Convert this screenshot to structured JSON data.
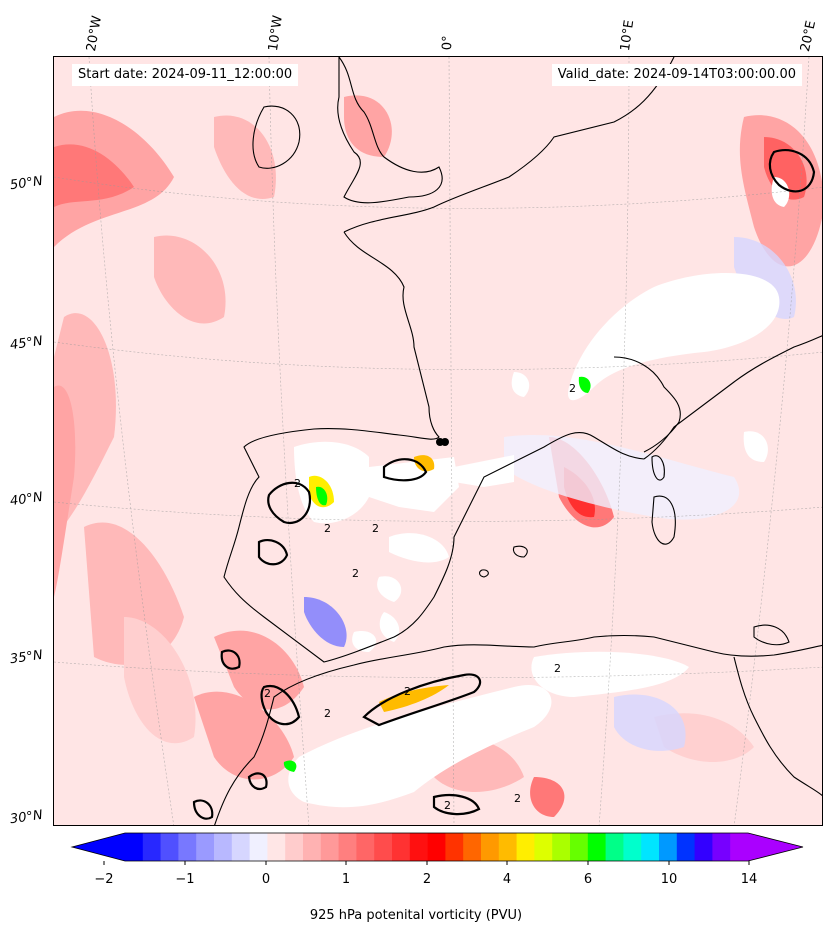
{
  "map": {
    "start_date": "Start date: 2024-09-11_12:00:00",
    "valid_date": "Valid_date: 2024-09-14T03:00:00.00",
    "lon_labels": [
      "20°W",
      "10°W",
      "0°",
      "10°E",
      "20°E"
    ],
    "lat_labels": [
      "50°N",
      "45°N",
      "40°N",
      "35°N",
      "30°N"
    ],
    "contour_label": "2",
    "colors": {
      "background_field": "#ffe5e5",
      "ocean_field": "#ffdcdc",
      "coast": "#000000",
      "masked": "#ffffff"
    }
  },
  "colorbar": {
    "label": "925 hPa potenital vorticity (PVU)",
    "ticks": [
      "−2",
      "−1",
      "0",
      "1",
      "2",
      "4",
      "6",
      "10",
      "14"
    ],
    "colors": [
      "#0000ff",
      "#2828ff",
      "#5050ff",
      "#7878ff",
      "#9a9aff",
      "#b8b8ff",
      "#d6d6ff",
      "#f0f0ff",
      "#ffe6e6",
      "#ffcccc",
      "#ffb2b2",
      "#ff9999",
      "#ff7f7f",
      "#ff6666",
      "#ff4c4c",
      "#ff3232",
      "#ff1010",
      "#ff0000",
      "#ff3300",
      "#ff6600",
      "#ff9900",
      "#ffbb00",
      "#ffee00",
      "#ddff00",
      "#aaff00",
      "#66ff00",
      "#00ff00",
      "#00ff88",
      "#00ffcc",
      "#00e5ff",
      "#0099ff",
      "#0033ff",
      "#3300ff",
      "#7700ff",
      "#aa00ff"
    ]
  }
}
